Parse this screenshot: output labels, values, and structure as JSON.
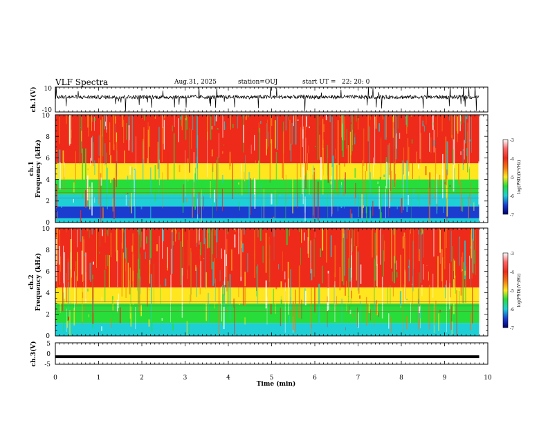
{
  "header": {
    "title": "VLF Spectra",
    "date": "Aug.31, 2025",
    "station": "station=OUJ",
    "start_label": "start  UT  =",
    "start_time": "22: 20: 0"
  },
  "colors": {
    "red": "#ee2a1a",
    "orange": "#f57a12",
    "yellow": "#ffe61e",
    "green": "#28dc3a",
    "cyan": "#1ecfd6",
    "blue": "#1a3ccf",
    "navy": "#00006e"
  },
  "chart_data": [
    {
      "type": "line",
      "id": "ch1-waveform",
      "ylabel": "ch.1(V)",
      "ylim": [
        -10,
        10
      ],
      "yticks": [
        "10",
        "-10"
      ],
      "xlim": [
        0,
        10
      ],
      "baseline": 2,
      "noise_amplitude": 1.5
    },
    {
      "type": "heatmap",
      "id": "ch1-spectrogram",
      "ylabel_top": "ch.1",
      "ylabel": "Frequency  (kHz)",
      "ylim": [
        0,
        10
      ],
      "yticks": [
        "0",
        "2",
        "4",
        "6",
        "8",
        "10"
      ],
      "xlim": [
        0,
        10
      ],
      "data_end_min": 9.8,
      "bands_khz": [
        {
          "from": 0,
          "to": 0.4,
          "color": "cyan"
        },
        {
          "from": 0.4,
          "to": 1.5,
          "color": "blue"
        },
        {
          "from": 1.5,
          "to": 2.6,
          "color": "cyan"
        },
        {
          "from": 2.6,
          "to": 4.0,
          "color": "green"
        },
        {
          "from": 4.0,
          "to": 5.5,
          "color": "yellow"
        },
        {
          "from": 5.5,
          "to": 10,
          "color": "red"
        }
      ],
      "colorbar": {
        "label": "log(PSD)(V²/Hz)",
        "ticks": [
          "-3",
          "-4",
          "-5",
          "-6",
          "-7"
        ],
        "range": [
          -7,
          -3
        ]
      }
    },
    {
      "type": "heatmap",
      "id": "ch2-spectrogram",
      "ylabel_top": "ch.2",
      "ylabel": "Frequency  (kHz)",
      "ylim": [
        0,
        10
      ],
      "yticks": [
        "0",
        "2",
        "4",
        "6",
        "8",
        "10"
      ],
      "xlim": [
        0,
        10
      ],
      "data_end_min": 9.8,
      "bands_khz": [
        {
          "from": 0,
          "to": 1.2,
          "color": "cyan"
        },
        {
          "from": 1.2,
          "to": 3.0,
          "color": "green"
        },
        {
          "from": 3.0,
          "to": 4.5,
          "color": "yellow"
        },
        {
          "from": 4.5,
          "to": 10,
          "color": "red"
        }
      ],
      "colorbar": {
        "label": "log(PSD)(V²/Hz)",
        "ticks": [
          "-3",
          "-4",
          "-5",
          "-6",
          "-7"
        ],
        "range": [
          -7,
          -3
        ]
      }
    },
    {
      "type": "line",
      "id": "ch3-signal",
      "ylabel": "ch.3(V)",
      "ylim": [
        -5,
        5
      ],
      "yticks": [
        "5",
        "0",
        "-5"
      ],
      "xlim": [
        0,
        10
      ],
      "value": -1.5
    }
  ],
  "xaxis": {
    "label": "Time  (min)",
    "ticks": [
      "0",
      "1",
      "2",
      "3",
      "4",
      "5",
      "6",
      "7",
      "8",
      "9",
      "10"
    ]
  }
}
